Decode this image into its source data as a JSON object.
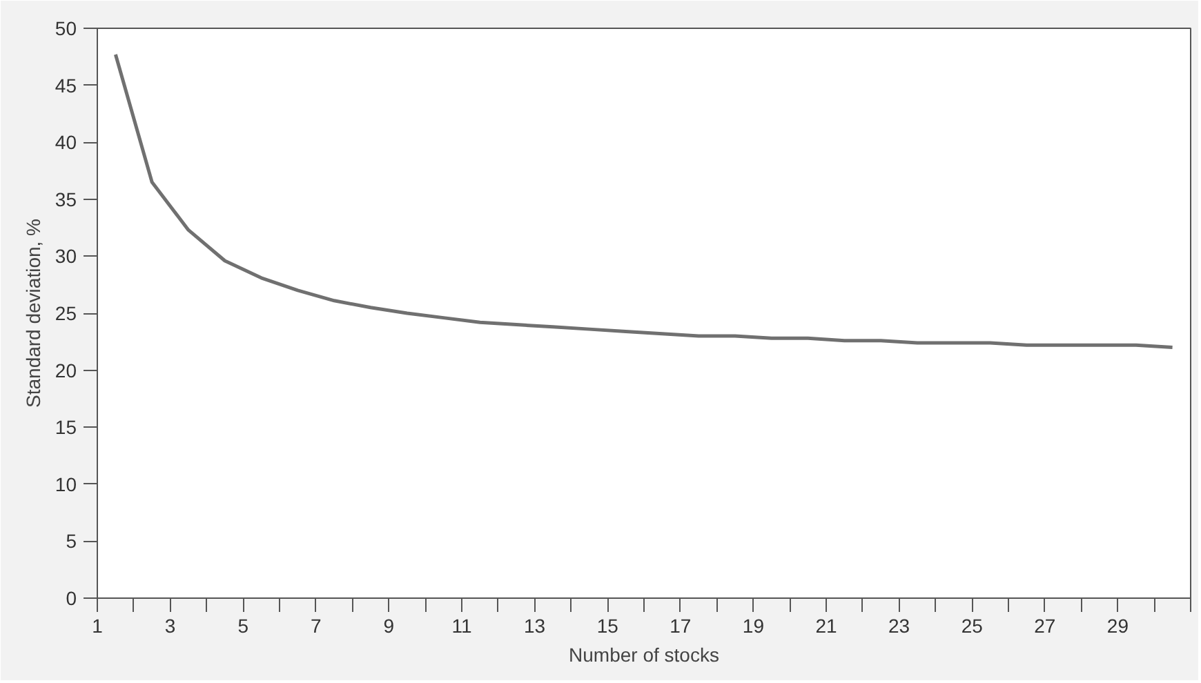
{
  "chart_data": {
    "type": "line",
    "xlabel": "Number of stocks",
    "ylabel": "Standard deviation, %",
    "x": [
      1.5,
      2.5,
      3.5,
      4.5,
      5.5,
      6.5,
      7.5,
      8.5,
      9.5,
      10.5,
      11.5,
      12.5,
      13.5,
      14.5,
      15.5,
      16.5,
      17.5,
      18.5,
      19.5,
      20.5,
      21.5,
      22.5,
      23.5,
      24.5,
      25.5,
      26.5,
      27.5,
      28.5,
      29.5,
      30.5
    ],
    "series": [
      {
        "color": "#707070",
        "values": [
          47.7,
          36.5,
          32.3,
          29.6,
          28.1,
          27.0,
          26.1,
          25.5,
          25.0,
          24.6,
          24.2,
          24.0,
          23.8,
          23.6,
          23.4,
          23.2,
          23.0,
          23.0,
          22.8,
          22.8,
          22.6,
          22.6,
          22.4,
          22.4,
          22.4,
          22.2,
          22.2,
          22.2,
          22.2,
          22.0
        ]
      }
    ],
    "xlim": [
      1,
      31
    ],
    "ylim": [
      0,
      50
    ],
    "xticks": [
      1,
      {
        "value": 2,
        "label": null
      },
      3,
      {
        "value": 4,
        "label": null
      },
      5,
      {
        "value": 6,
        "label": null
      },
      7,
      {
        "value": 8,
        "label": null
      },
      9,
      {
        "value": 10,
        "label": null
      },
      11,
      {
        "value": 12,
        "label": null
      },
      13,
      {
        "value": 14,
        "label": null
      },
      15,
      {
        "value": 16,
        "label": null
      },
      17,
      {
        "value": 18,
        "label": null
      },
      19,
      {
        "value": 20,
        "label": null
      },
      21,
      {
        "value": 22,
        "label": null
      },
      23,
      {
        "value": 24,
        "label": null
      },
      25,
      {
        "value": 26,
        "label": null
      },
      27,
      {
        "value": 28,
        "label": null
      },
      29,
      {
        "value": 30,
        "label": null
      },
      {
        "value": 31,
        "label": null
      }
    ],
    "yticks": [
      0,
      5,
      10,
      15,
      20,
      25,
      30,
      35,
      40,
      45,
      50
    ],
    "grid": false,
    "marker": "none",
    "line_style": "solid"
  }
}
